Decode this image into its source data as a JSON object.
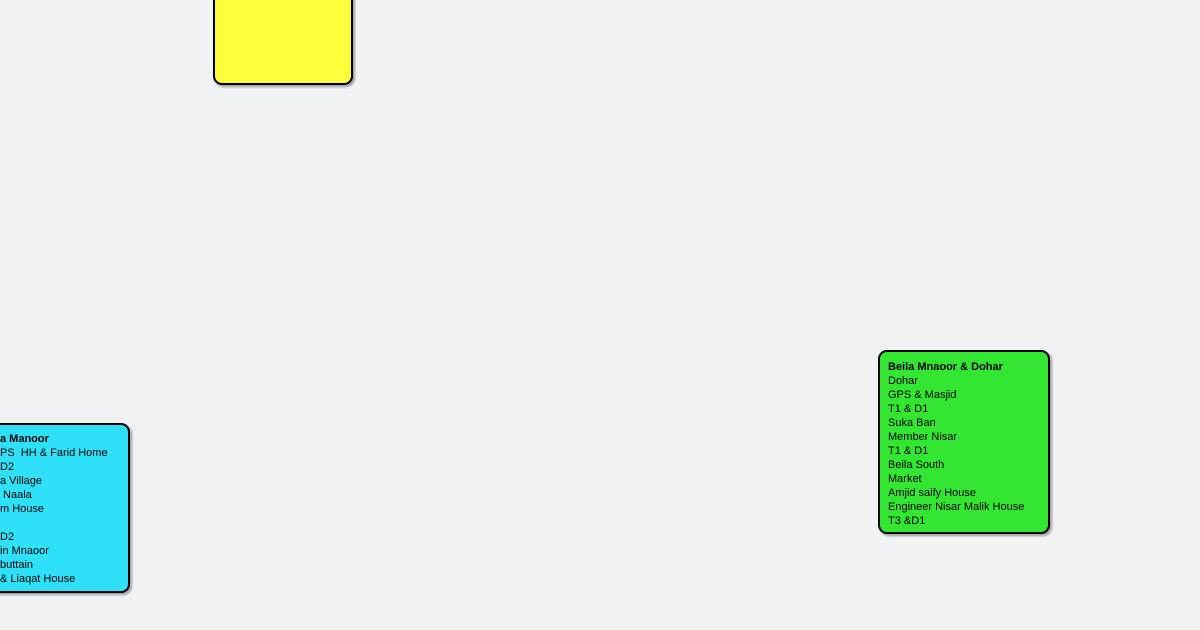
{
  "canvas": {
    "background_color": "#f1f2f4",
    "border_color": "#000000"
  },
  "nodes": {
    "yellow": {
      "fill": "#fdfd3c",
      "title": "",
      "lines": []
    },
    "cyan": {
      "fill": "#2ee1f8",
      "title": "a Manoor",
      "lines": [
        "PS  HH & Farid Home",
        "D2",
        "a Village",
        " Naala",
        "m House",
        "",
        "D2",
        "in Mnaoor",
        "buttain",
        "& Liaqat House"
      ]
    },
    "green": {
      "fill": "#33e632",
      "title": "Beila Mnaoor & Dohar",
      "lines": [
        "Dohar",
        "GPS & Masjid",
        "T1 & D1",
        "Suka Ban",
        "Member Nisar",
        "T1 & D1",
        "Beila South",
        "Market",
        "Amjid saify House",
        "Engineer Nisar Malik House",
        "T3 &D1"
      ]
    }
  }
}
